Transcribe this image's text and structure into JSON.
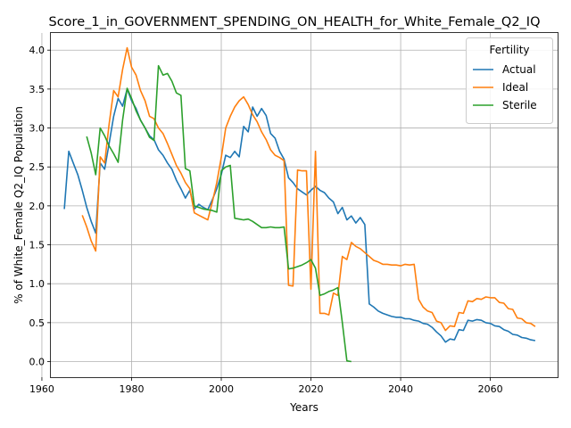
{
  "chart_data": {
    "type": "line",
    "title": "Score_1_in_GOVERNMENT_SPENDING_ON_HEALTH_for_White_Female_Q2_IQ",
    "xlabel": "Years",
    "ylabel": "% of White_Female Q2_IQ Population",
    "xlim": [
      1962,
      2075
    ],
    "ylim": [
      -0.2,
      4.22
    ],
    "x_ticks": [
      1960,
      1980,
      2000,
      2020,
      2040,
      2060
    ],
    "y_ticks": [
      0.0,
      0.5,
      1.0,
      1.5,
      2.0,
      2.5,
      3.0,
      3.5,
      4.0
    ],
    "x_tick_labels": [
      "1960",
      "1980",
      "2000",
      "2020",
      "2040",
      "2060"
    ],
    "y_tick_labels": [
      "0.0",
      "0.5",
      "1.0",
      "1.5",
      "2.0",
      "2.5",
      "3.0",
      "3.5",
      "4.0"
    ],
    "grid": true,
    "legend": {
      "title": "Fertility",
      "placement": "top-right"
    },
    "series": [
      {
        "name": "Actual",
        "color": "#1f77b4",
        "points": [
          [
            1965,
            1.96
          ],
          [
            1966,
            2.7
          ],
          [
            1967,
            2.55
          ],
          [
            1968,
            2.4
          ],
          [
            1969,
            2.2
          ],
          [
            1970,
            1.98
          ],
          [
            1971,
            1.8
          ],
          [
            1972,
            1.65
          ],
          [
            1973,
            2.55
          ],
          [
            1974,
            2.47
          ],
          [
            1975,
            2.8
          ],
          [
            1976,
            3.15
          ],
          [
            1977,
            3.38
          ],
          [
            1978,
            3.28
          ],
          [
            1979,
            3.5
          ],
          [
            1980,
            3.35
          ],
          [
            1981,
            3.25
          ],
          [
            1982,
            3.1
          ],
          [
            1983,
            3.0
          ],
          [
            1984,
            2.9
          ],
          [
            1985,
            2.85
          ],
          [
            1986,
            2.72
          ],
          [
            1987,
            2.65
          ],
          [
            1988,
            2.55
          ],
          [
            1989,
            2.47
          ],
          [
            1990,
            2.33
          ],
          [
            1991,
            2.22
          ],
          [
            1992,
            2.1
          ],
          [
            1993,
            2.2
          ],
          [
            1994,
            1.96
          ],
          [
            1995,
            2.02
          ],
          [
            1996,
            1.98
          ],
          [
            1997,
            1.95
          ],
          [
            1998,
            2.08
          ],
          [
            1999,
            2.22
          ],
          [
            2000,
            2.4
          ],
          [
            2001,
            2.65
          ],
          [
            2002,
            2.62
          ],
          [
            2003,
            2.7
          ],
          [
            2004,
            2.63
          ],
          [
            2005,
            3.02
          ],
          [
            2006,
            2.95
          ],
          [
            2007,
            3.27
          ],
          [
            2008,
            3.15
          ],
          [
            2009,
            3.25
          ],
          [
            2010,
            3.16
          ],
          [
            2011,
            2.93
          ],
          [
            2012,
            2.87
          ],
          [
            2013,
            2.7
          ],
          [
            2014,
            2.6
          ],
          [
            2015,
            2.36
          ],
          [
            2016,
            2.3
          ],
          [
            2017,
            2.22
          ],
          [
            2018,
            2.18
          ],
          [
            2019,
            2.14
          ],
          [
            2020,
            2.2
          ],
          [
            2021,
            2.25
          ],
          [
            2022,
            2.2
          ],
          [
            2023,
            2.17
          ],
          [
            2024,
            2.1
          ],
          [
            2025,
            2.05
          ],
          [
            2026,
            1.9
          ],
          [
            2027,
            1.98
          ],
          [
            2028,
            1.82
          ],
          [
            2029,
            1.87
          ],
          [
            2030,
            1.78
          ],
          [
            2031,
            1.85
          ],
          [
            2032,
            1.76
          ],
          [
            2033,
            0.74
          ],
          [
            2034,
            0.7
          ],
          [
            2035,
            0.65
          ],
          [
            2036,
            0.62
          ],
          [
            2037,
            0.6
          ],
          [
            2038,
            0.58
          ],
          [
            2039,
            0.57
          ],
          [
            2040,
            0.57
          ],
          [
            2041,
            0.55
          ],
          [
            2042,
            0.55
          ],
          [
            2043,
            0.53
          ],
          [
            2044,
            0.52
          ],
          [
            2045,
            0.49
          ],
          [
            2046,
            0.48
          ],
          [
            2047,
            0.44
          ],
          [
            2048,
            0.38
          ],
          [
            2049,
            0.33
          ],
          [
            2050,
            0.25
          ],
          [
            2051,
            0.29
          ],
          [
            2052,
            0.28
          ],
          [
            2053,
            0.41
          ],
          [
            2054,
            0.4
          ],
          [
            2055,
            0.53
          ],
          [
            2056,
            0.52
          ],
          [
            2057,
            0.54
          ],
          [
            2058,
            0.53
          ],
          [
            2059,
            0.5
          ],
          [
            2060,
            0.49
          ],
          [
            2061,
            0.46
          ],
          [
            2062,
            0.45
          ],
          [
            2063,
            0.41
          ],
          [
            2064,
            0.39
          ],
          [
            2065,
            0.35
          ],
          [
            2066,
            0.34
          ],
          [
            2067,
            0.31
          ],
          [
            2068,
            0.3
          ],
          [
            2069,
            0.28
          ],
          [
            2070,
            0.27
          ]
        ]
      },
      {
        "name": "Ideal",
        "color": "#ff7f0e",
        "points": [
          [
            1969,
            1.88
          ],
          [
            1970,
            1.73
          ],
          [
            1971,
            1.55
          ],
          [
            1972,
            1.42
          ],
          [
            1973,
            2.63
          ],
          [
            1974,
            2.55
          ],
          [
            1975,
            3.05
          ],
          [
            1976,
            3.48
          ],
          [
            1977,
            3.4
          ],
          [
            1978,
            3.75
          ],
          [
            1979,
            4.03
          ],
          [
            1980,
            3.78
          ],
          [
            1981,
            3.68
          ],
          [
            1982,
            3.48
          ],
          [
            1983,
            3.35
          ],
          [
            1984,
            3.15
          ],
          [
            1985,
            3.12
          ],
          [
            1986,
            3.0
          ],
          [
            1987,
            2.93
          ],
          [
            1988,
            2.8
          ],
          [
            1989,
            2.66
          ],
          [
            1990,
            2.52
          ],
          [
            1991,
            2.42
          ],
          [
            1992,
            2.3
          ],
          [
            1993,
            2.22
          ],
          [
            1994,
            1.91
          ],
          [
            1995,
            1.88
          ],
          [
            1996,
            1.85
          ],
          [
            1997,
            1.82
          ],
          [
            1998,
            2.05
          ],
          [
            1999,
            2.3
          ],
          [
            2000,
            2.62
          ],
          [
            2001,
            3.0
          ],
          [
            2002,
            3.15
          ],
          [
            2003,
            3.27
          ],
          [
            2004,
            3.35
          ],
          [
            2005,
            3.4
          ],
          [
            2006,
            3.3
          ],
          [
            2007,
            3.17
          ],
          [
            2008,
            3.08
          ],
          [
            2009,
            2.95
          ],
          [
            2010,
            2.85
          ],
          [
            2011,
            2.72
          ],
          [
            2012,
            2.65
          ],
          [
            2013,
            2.62
          ],
          [
            2014,
            2.58
          ],
          [
            2015,
            0.98
          ],
          [
            2016,
            0.97
          ],
          [
            2017,
            2.46
          ],
          [
            2018,
            2.45
          ],
          [
            2019,
            2.45
          ],
          [
            2020,
            0.93
          ],
          [
            2021,
            2.7
          ],
          [
            2022,
            0.62
          ],
          [
            2023,
            0.62
          ],
          [
            2024,
            0.6
          ],
          [
            2025,
            0.88
          ],
          [
            2026,
            0.85
          ],
          [
            2027,
            1.35
          ],
          [
            2028,
            1.31
          ],
          [
            2029,
            1.53
          ],
          [
            2030,
            1.48
          ],
          [
            2031,
            1.45
          ],
          [
            2032,
            1.4
          ],
          [
            2033,
            1.35
          ],
          [
            2034,
            1.3
          ],
          [
            2035,
            1.28
          ],
          [
            2036,
            1.25
          ],
          [
            2037,
            1.25
          ],
          [
            2038,
            1.24
          ],
          [
            2039,
            1.24
          ],
          [
            2040,
            1.23
          ],
          [
            2041,
            1.25
          ],
          [
            2042,
            1.24
          ],
          [
            2043,
            1.25
          ],
          [
            2044,
            0.8
          ],
          [
            2045,
            0.7
          ],
          [
            2046,
            0.65
          ],
          [
            2047,
            0.63
          ],
          [
            2048,
            0.52
          ],
          [
            2049,
            0.5
          ],
          [
            2050,
            0.4
          ],
          [
            2051,
            0.46
          ],
          [
            2052,
            0.45
          ],
          [
            2053,
            0.63
          ],
          [
            2054,
            0.62
          ],
          [
            2055,
            0.78
          ],
          [
            2056,
            0.77
          ],
          [
            2057,
            0.81
          ],
          [
            2058,
            0.8
          ],
          [
            2059,
            0.83
          ],
          [
            2060,
            0.82
          ],
          [
            2061,
            0.82
          ],
          [
            2062,
            0.76
          ],
          [
            2063,
            0.75
          ],
          [
            2064,
            0.68
          ],
          [
            2065,
            0.67
          ],
          [
            2066,
            0.56
          ],
          [
            2067,
            0.55
          ],
          [
            2068,
            0.5
          ],
          [
            2069,
            0.49
          ],
          [
            2070,
            0.45
          ]
        ]
      },
      {
        "name": "Sterile",
        "color": "#2ca02c",
        "points": [
          [
            1970,
            2.89
          ],
          [
            1971,
            2.68
          ],
          [
            1972,
            2.4
          ],
          [
            1973,
            3.0
          ],
          [
            1974,
            2.9
          ],
          [
            1975,
            2.77
          ],
          [
            1976,
            2.67
          ],
          [
            1977,
            2.56
          ],
          [
            1978,
            3.1
          ],
          [
            1979,
            3.51
          ],
          [
            1980,
            3.38
          ],
          [
            1981,
            3.22
          ],
          [
            1982,
            3.1
          ],
          [
            1983,
            3.0
          ],
          [
            1984,
            2.88
          ],
          [
            1985,
            2.84
          ],
          [
            1986,
            3.8
          ],
          [
            1987,
            3.68
          ],
          [
            1988,
            3.7
          ],
          [
            1989,
            3.6
          ],
          [
            1990,
            3.45
          ],
          [
            1991,
            3.42
          ],
          [
            1992,
            2.48
          ],
          [
            1993,
            2.45
          ],
          [
            1994,
            2.0
          ],
          [
            1995,
            1.98
          ],
          [
            1996,
            1.96
          ],
          [
            1997,
            1.95
          ],
          [
            1998,
            1.94
          ],
          [
            1999,
            1.92
          ],
          [
            2000,
            2.45
          ],
          [
            2001,
            2.5
          ],
          [
            2002,
            2.52
          ],
          [
            2003,
            1.84
          ],
          [
            2004,
            1.83
          ],
          [
            2005,
            1.82
          ],
          [
            2006,
            1.83
          ],
          [
            2007,
            1.8
          ],
          [
            2008,
            1.76
          ],
          [
            2009,
            1.72
          ],
          [
            2010,
            1.72
          ],
          [
            2011,
            1.73
          ],
          [
            2012,
            1.72
          ],
          [
            2013,
            1.72
          ],
          [
            2014,
            1.73
          ],
          [
            2015,
            1.19
          ],
          [
            2016,
            1.2
          ],
          [
            2017,
            1.22
          ],
          [
            2018,
            1.24
          ],
          [
            2019,
            1.27
          ],
          [
            2020,
            1.31
          ],
          [
            2021,
            1.2
          ],
          [
            2022,
            0.85
          ],
          [
            2023,
            0.87
          ],
          [
            2024,
            0.9
          ],
          [
            2025,
            0.92
          ],
          [
            2026,
            0.95
          ],
          [
            2027,
            0.5
          ],
          [
            2028,
            0.01
          ],
          [
            2029,
            0.0
          ]
        ]
      }
    ]
  }
}
